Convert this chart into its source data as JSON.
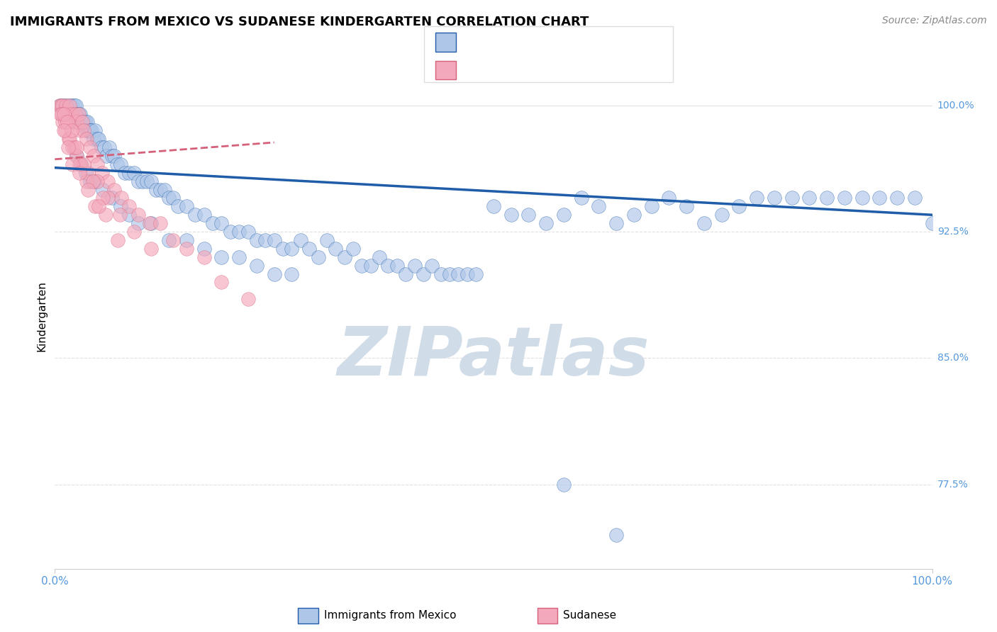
{
  "title": "IMMIGRANTS FROM MEXICO VS SUDANESE KINDERGARTEN CORRELATION CHART",
  "source": "Source: ZipAtlas.com",
  "ylabel": "Kindergarten",
  "ytick_labels": [
    "100.0%",
    "92.5%",
    "85.0%",
    "77.5%"
  ],
  "ytick_values": [
    1.0,
    0.925,
    0.85,
    0.775
  ],
  "xmin": 0.0,
  "xmax": 1.0,
  "ymin": 0.725,
  "ymax": 1.025,
  "legend_label_blue": "Immigrants from Mexico",
  "legend_label_pink": "Sudanese",
  "scatter_color_blue": "#aec6e8",
  "scatter_color_pink": "#f4a8bb",
  "trend_color_blue": "#1f5da8",
  "trend_color_pink": "#d4607a",
  "watermark_text": "ZIPatlas",
  "watermark_color": "#d0dce8",
  "background_color": "#ffffff",
  "title_fontsize": 13,
  "axis_label_color": "#5599dd",
  "grid_color": "#e0e0e0",
  "blue_points_x": [
    0.005,
    0.008,
    0.01,
    0.012,
    0.014,
    0.015,
    0.016,
    0.018,
    0.019,
    0.02,
    0.021,
    0.022,
    0.023,
    0.024,
    0.025,
    0.026,
    0.027,
    0.028,
    0.029,
    0.03,
    0.031,
    0.032,
    0.033,
    0.034,
    0.035,
    0.036,
    0.037,
    0.038,
    0.039,
    0.04,
    0.042,
    0.044,
    0.046,
    0.048,
    0.05,
    0.053,
    0.056,
    0.059,
    0.062,
    0.065,
    0.068,
    0.071,
    0.075,
    0.08,
    0.085,
    0.09,
    0.095,
    0.1,
    0.105,
    0.11,
    0.115,
    0.12,
    0.125,
    0.13,
    0.135,
    0.14,
    0.15,
    0.16,
    0.17,
    0.18,
    0.19,
    0.2,
    0.21,
    0.22,
    0.23,
    0.24,
    0.25,
    0.26,
    0.27,
    0.28,
    0.29,
    0.3,
    0.31,
    0.32,
    0.33,
    0.34,
    0.35,
    0.36,
    0.37,
    0.38,
    0.39,
    0.4,
    0.41,
    0.42,
    0.43,
    0.44,
    0.45,
    0.46,
    0.47,
    0.48,
    0.5,
    0.52,
    0.54,
    0.56,
    0.58,
    0.6,
    0.62,
    0.64,
    0.66,
    0.68,
    0.7,
    0.72,
    0.74,
    0.76,
    0.78,
    0.8,
    0.82,
    0.84,
    0.86,
    0.88,
    0.9,
    0.92,
    0.94,
    0.96,
    0.98,
    1.0,
    0.58,
    0.64,
    0.025,
    0.03,
    0.035,
    0.04,
    0.045,
    0.055,
    0.065,
    0.075,
    0.085,
    0.095,
    0.11,
    0.13,
    0.15,
    0.17,
    0.19,
    0.21,
    0.23,
    0.25,
    0.27
  ],
  "blue_points_y": [
    1.0,
    1.0,
    1.0,
    1.0,
    0.995,
    1.0,
    0.995,
    1.0,
    0.995,
    1.0,
    0.995,
    1.0,
    0.995,
    1.0,
    0.995,
    0.99,
    0.995,
    0.99,
    0.995,
    0.99,
    0.99,
    0.99,
    0.99,
    0.99,
    0.99,
    0.985,
    0.99,
    0.985,
    0.985,
    0.985,
    0.985,
    0.98,
    0.985,
    0.98,
    0.98,
    0.975,
    0.975,
    0.97,
    0.975,
    0.97,
    0.97,
    0.965,
    0.965,
    0.96,
    0.96,
    0.96,
    0.955,
    0.955,
    0.955,
    0.955,
    0.95,
    0.95,
    0.95,
    0.945,
    0.945,
    0.94,
    0.94,
    0.935,
    0.935,
    0.93,
    0.93,
    0.925,
    0.925,
    0.925,
    0.92,
    0.92,
    0.92,
    0.915,
    0.915,
    0.92,
    0.915,
    0.91,
    0.92,
    0.915,
    0.91,
    0.915,
    0.905,
    0.905,
    0.91,
    0.905,
    0.905,
    0.9,
    0.905,
    0.9,
    0.905,
    0.9,
    0.9,
    0.9,
    0.9,
    0.9,
    0.94,
    0.935,
    0.935,
    0.93,
    0.935,
    0.945,
    0.94,
    0.93,
    0.935,
    0.94,
    0.945,
    0.94,
    0.93,
    0.935,
    0.94,
    0.945,
    0.945,
    0.945,
    0.945,
    0.945,
    0.945,
    0.945,
    0.945,
    0.945,
    0.945,
    0.93,
    0.775,
    0.745,
    0.97,
    0.965,
    0.96,
    0.955,
    0.955,
    0.95,
    0.945,
    0.94,
    0.935,
    0.93,
    0.93,
    0.92,
    0.92,
    0.915,
    0.91,
    0.91,
    0.905,
    0.9,
    0.9
  ],
  "pink_points_x": [
    0.005,
    0.007,
    0.009,
    0.011,
    0.013,
    0.015,
    0.017,
    0.019,
    0.021,
    0.023,
    0.025,
    0.027,
    0.029,
    0.031,
    0.033,
    0.036,
    0.04,
    0.044,
    0.048,
    0.054,
    0.06,
    0.068,
    0.076,
    0.085,
    0.095,
    0.108,
    0.12,
    0.135,
    0.15,
    0.17,
    0.006,
    0.009,
    0.012,
    0.016,
    0.02,
    0.025,
    0.03,
    0.038,
    0.048,
    0.06,
    0.074,
    0.09,
    0.11,
    0.008,
    0.012,
    0.017,
    0.022,
    0.028,
    0.036,
    0.046,
    0.058,
    0.072,
    0.01,
    0.014,
    0.019,
    0.025,
    0.033,
    0.043,
    0.055,
    0.19,
    0.22,
    0.01,
    0.015,
    0.02,
    0.028,
    0.038,
    0.05
  ],
  "pink_points_y": [
    1.0,
    1.0,
    1.0,
    0.995,
    1.0,
    0.995,
    1.0,
    0.995,
    0.99,
    0.995,
    0.99,
    0.995,
    0.985,
    0.99,
    0.985,
    0.98,
    0.975,
    0.97,
    0.965,
    0.96,
    0.955,
    0.95,
    0.945,
    0.94,
    0.935,
    0.93,
    0.93,
    0.92,
    0.915,
    0.91,
    0.995,
    0.99,
    0.985,
    0.98,
    0.975,
    0.97,
    0.965,
    0.96,
    0.955,
    0.945,
    0.935,
    0.925,
    0.915,
    0.995,
    0.99,
    0.98,
    0.975,
    0.965,
    0.955,
    0.94,
    0.935,
    0.92,
    0.995,
    0.99,
    0.985,
    0.975,
    0.965,
    0.955,
    0.945,
    0.895,
    0.885,
    0.985,
    0.975,
    0.965,
    0.96,
    0.95,
    0.94
  ]
}
